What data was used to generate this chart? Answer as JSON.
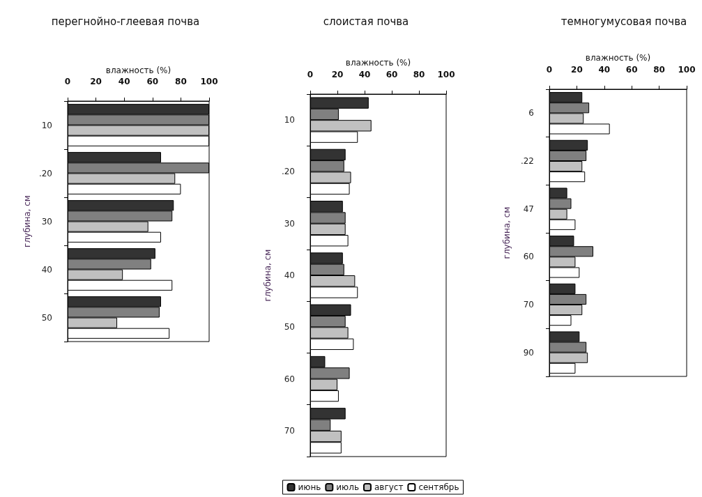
{
  "chart_data": [
    {
      "type": "bar",
      "orientation": "horizontal",
      "title": "перегнойно-глеевая почва",
      "xlabel": "влажность (%)",
      "ylabel": "глубина, см",
      "categories": [
        "10",
        ".20",
        "30",
        "40",
        "50"
      ],
      "xlim": [
        0,
        100
      ],
      "xticks": [
        0,
        20,
        40,
        60,
        80,
        100
      ],
      "legend": false,
      "grid": false,
      "series": [
        {
          "color": "#333333",
          "values": [
            100,
            66,
            75,
            62,
            66
          ]
        },
        {
          "color": "#808080",
          "values": [
            100,
            100,
            74,
            59,
            65
          ]
        },
        {
          "color": "#c0c0c0",
          "values": [
            100,
            76,
            57,
            39,
            35
          ]
        },
        {
          "color": "#ffffff",
          "values": [
            100,
            80,
            66,
            74,
            72
          ]
        }
      ]
    },
    {
      "type": "bar",
      "orientation": "horizontal",
      "title": "слоистая почва",
      "xlabel": "влажность (%)",
      "ylabel": "глубина, см",
      "categories": [
        "10",
        ".20",
        "30",
        "40",
        "50",
        "60",
        "70"
      ],
      "xlim": [
        0,
        100
      ],
      "xticks": [
        0,
        20,
        40,
        60,
        80,
        100
      ],
      "legend": "bottom",
      "grid": false,
      "series": [
        {
          "name": "июнь",
          "color": "#333333",
          "values": [
            43,
            26,
            24,
            24,
            30,
            11,
            26
          ]
        },
        {
          "name": "июль",
          "color": "#808080",
          "values": [
            21,
            25,
            26,
            25,
            26,
            29,
            15
          ]
        },
        {
          "name": "август",
          "color": "#c0c0c0",
          "values": [
            45,
            30,
            26,
            33,
            28,
            20,
            23
          ]
        },
        {
          "name": "сентябрь",
          "color": "#ffffff",
          "values": [
            35,
            29,
            28,
            35,
            32,
            21,
            23
          ]
        }
      ]
    },
    {
      "type": "bar",
      "orientation": "horizontal",
      "title": "темногумусовая почва",
      "xlabel": "влажность (%)",
      "ylabel": "глубина, см",
      "categories": [
        "6",
        ".22",
        "47",
        "60",
        "70",
        "90"
      ],
      "xlim": [
        0,
        100
      ],
      "xticks": [
        0,
        20,
        40,
        60,
        80,
        100
      ],
      "legend": false,
      "grid": false,
      "series": [
        {
          "color": "#333333",
          "values": [
            24,
            28,
            13,
            18,
            19,
            22
          ]
        },
        {
          "color": "#808080",
          "values": [
            29,
            27,
            16,
            32,
            27,
            27
          ]
        },
        {
          "color": "#c0c0c0",
          "values": [
            25,
            24,
            13,
            19,
            24,
            28
          ]
        },
        {
          "color": "#ffffff",
          "values": [
            44,
            26,
            19,
            22,
            16,
            19
          ]
        }
      ]
    }
  ]
}
